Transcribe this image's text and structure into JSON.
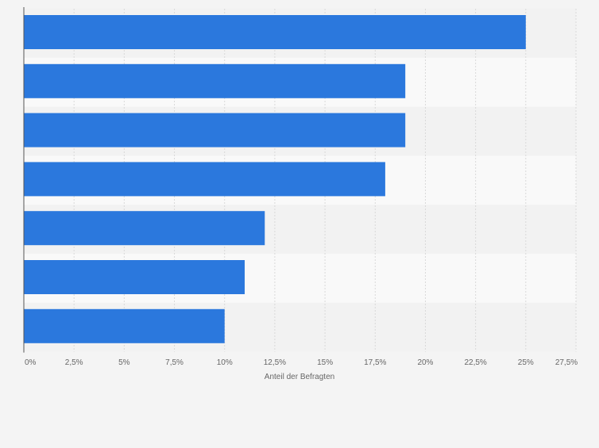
{
  "chart_data": {
    "type": "bar",
    "orientation": "horizontal",
    "categories": [
      "",
      "",
      "",
      "",
      "",
      "",
      ""
    ],
    "series": [
      {
        "values": [
          25,
          19,
          19,
          18,
          12,
          11,
          10
        ]
      }
    ],
    "xlabel": "Anteil der Befragten",
    "ylabel": "",
    "xlim": [
      0,
      27.5
    ],
    "xticks": [
      0,
      2.5,
      5,
      7.5,
      10,
      12.5,
      15,
      17.5,
      20,
      22.5,
      25,
      27.5
    ],
    "xtick_labels": [
      "0%",
      "2,5%",
      "5%",
      "7,5%",
      "10%",
      "12,5%",
      "15%",
      "17,5%",
      "20%",
      "22,5%",
      "25%",
      "27,5%"
    ],
    "grid": true,
    "legend": "none",
    "colors": {
      "bar": "#2b78dd",
      "row_band": "#f2f2f2",
      "row_plain": "#f9f9f9",
      "grid": "#d9d9d9",
      "axis": "#555555",
      "text": "#666666"
    }
  }
}
